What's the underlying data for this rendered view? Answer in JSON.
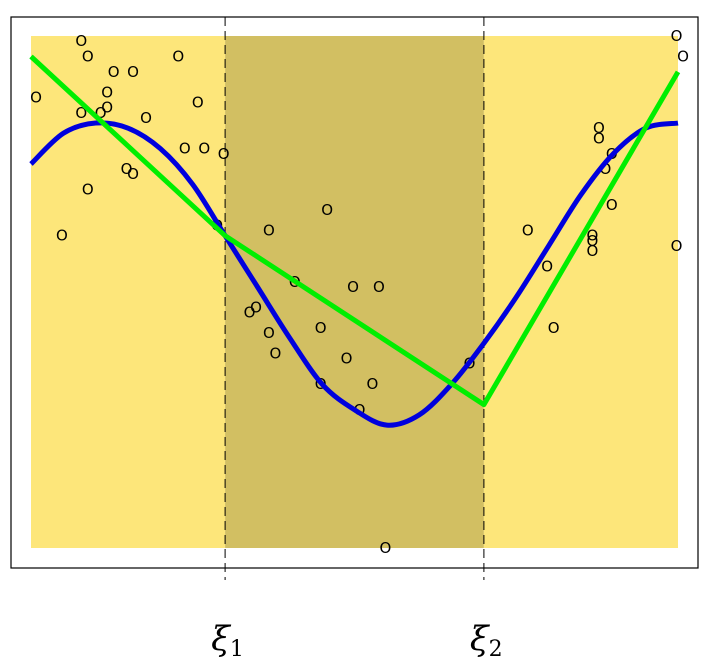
{
  "chart_data": {
    "type": "scatter",
    "title": "",
    "xlabel": "",
    "ylabel": "",
    "xlim": [
      0,
      1
    ],
    "ylim": [
      0,
      1
    ],
    "grid": false,
    "axis_ticks": false,
    "knots": [
      {
        "name": "ξ1",
        "symbol": "ξ",
        "subscript": "1",
        "x": 0.3
      },
      {
        "name": "ξ2",
        "symbol": "ξ",
        "subscript": "2",
        "x": 0.7
      }
    ],
    "regions": [
      {
        "x0": 0.0,
        "x1": 0.3,
        "color": "#fde67a"
      },
      {
        "x0": 0.3,
        "x1": 0.7,
        "color": "#d2bf62"
      },
      {
        "x0": 0.7,
        "x1": 1.0,
        "color": "#fde67a"
      }
    ],
    "marker_symbol": "O",
    "points": [
      [
        0.07,
        0.99
      ],
      [
        0.08,
        0.96
      ],
      [
        0.0,
        0.88
      ],
      [
        0.12,
        0.93
      ],
      [
        0.15,
        0.93
      ],
      [
        0.22,
        0.96
      ],
      [
        0.11,
        0.89
      ],
      [
        0.11,
        0.86
      ],
      [
        0.1,
        0.85
      ],
      [
        0.07,
        0.85
      ],
      [
        0.17,
        0.84
      ],
      [
        0.25,
        0.87
      ],
      [
        0.23,
        0.78
      ],
      [
        0.26,
        0.78
      ],
      [
        0.29,
        0.77
      ],
      [
        0.14,
        0.74
      ],
      [
        0.15,
        0.73
      ],
      [
        0.08,
        0.7
      ],
      [
        0.04,
        0.61
      ],
      [
        0.28,
        0.63
      ],
      [
        0.36,
        0.62
      ],
      [
        0.45,
        0.66
      ],
      [
        0.4,
        0.52
      ],
      [
        0.34,
        0.47
      ],
      [
        0.33,
        0.46
      ],
      [
        0.36,
        0.42
      ],
      [
        0.44,
        0.43
      ],
      [
        0.37,
        0.38
      ],
      [
        0.49,
        0.51
      ],
      [
        0.53,
        0.51
      ],
      [
        0.48,
        0.37
      ],
      [
        0.44,
        0.32
      ],
      [
        0.52,
        0.32
      ],
      [
        0.5,
        0.27
      ],
      [
        0.54,
        0.0
      ],
      [
        0.67,
        0.36
      ],
      [
        0.76,
        0.62
      ],
      [
        0.79,
        0.55
      ],
      [
        0.8,
        0.43
      ],
      [
        0.86,
        0.61
      ],
      [
        0.86,
        0.6
      ],
      [
        0.86,
        0.58
      ],
      [
        0.87,
        0.82
      ],
      [
        0.87,
        0.8
      ],
      [
        0.88,
        0.74
      ],
      [
        0.89,
        0.67
      ],
      [
        0.89,
        0.77
      ],
      [
        0.99,
        1.0
      ],
      [
        1.0,
        0.96
      ],
      [
        0.99,
        0.59
      ]
    ],
    "series": [
      {
        "color": "#0000dd",
        "curve": "smooth",
        "x": [
          0.0,
          0.05,
          0.1,
          0.15,
          0.2,
          0.25,
          0.3,
          0.35,
          0.4,
          0.45,
          0.5,
          0.55,
          0.6,
          0.65,
          0.7,
          0.75,
          0.8,
          0.85,
          0.9,
          0.95,
          1.0
        ],
        "y": [
          0.75,
          0.81,
          0.83,
          0.82,
          0.78,
          0.71,
          0.61,
          0.51,
          0.41,
          0.32,
          0.27,
          0.24,
          0.26,
          0.32,
          0.4,
          0.49,
          0.59,
          0.69,
          0.77,
          0.82,
          0.83
        ]
      },
      {
        "color": "#00ee00",
        "curve": "linear",
        "x": [
          0.0,
          0.3,
          0.7,
          1.0
        ],
        "y": [
          0.96,
          0.61,
          0.28,
          0.93
        ]
      }
    ]
  }
}
